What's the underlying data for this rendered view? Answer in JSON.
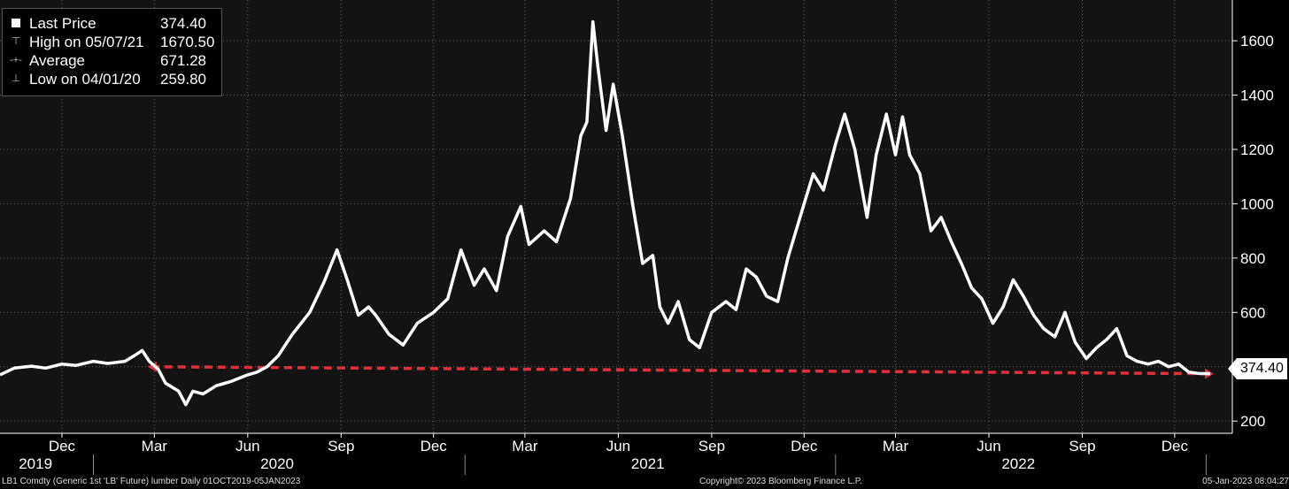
{
  "legend": {
    "last": {
      "label": "Last Price",
      "value": "374.40"
    },
    "high": {
      "label": "High on 05/07/21",
      "value": "1670.50"
    },
    "average": {
      "label": "Average",
      "value": "671.28"
    },
    "low": {
      "label": "Low on 04/01/20",
      "value": "259.80"
    }
  },
  "price_tag": "374.40",
  "footer": {
    "left": "LB1 Comdty (Generic 1st 'LB' Future) lumber  Daily 01OCT2019-05JAN2023",
    "center": "Copyright© 2023 Bloomberg Finance L.P.",
    "right": "05-Jan-2023 08:04:27"
  },
  "colors": {
    "background": "#131313",
    "line": "#ffffff",
    "grid": "#666666",
    "reference_line": "#e0303a"
  },
  "chart_data": {
    "type": "line",
    "x_range": [
      "2019-10-01",
      "2023-01-05"
    ],
    "ylim": [
      155,
      1750
    ],
    "y_ticks": [
      200,
      400,
      600,
      800,
      1000,
      1200,
      1400,
      1600
    ],
    "y_axis": "right",
    "grid": true,
    "legend_position": "top-left",
    "x_month_ticks": [
      {
        "label": "Dec",
        "date": "2019-12-01"
      },
      {
        "label": "Mar",
        "date": "2020-03-01"
      },
      {
        "label": "Jun",
        "date": "2020-06-01"
      },
      {
        "label": "Sep",
        "date": "2020-09-01"
      },
      {
        "label": "Dec",
        "date": "2020-12-01"
      },
      {
        "label": "Mar",
        "date": "2021-03-01"
      },
      {
        "label": "Jun",
        "date": "2021-06-01"
      },
      {
        "label": "Sep",
        "date": "2021-09-01"
      },
      {
        "label": "Dec",
        "date": "2021-12-01"
      },
      {
        "label": "Mar",
        "date": "2022-03-01"
      },
      {
        "label": "Jun",
        "date": "2022-06-01"
      },
      {
        "label": "Sep",
        "date": "2022-09-01"
      },
      {
        "label": "Dec",
        "date": "2022-12-01"
      }
    ],
    "year_labels": [
      {
        "label": "2019",
        "date": "2019-11-05"
      },
      {
        "label": "2020",
        "date": "2020-06-30"
      },
      {
        "label": "2021",
        "date": "2021-06-30"
      },
      {
        "label": "2022",
        "date": "2022-06-30"
      }
    ],
    "year_boundaries": [
      "2020-01-01",
      "2021-01-01",
      "2022-01-01",
      "2023-01-01"
    ],
    "series": [
      {
        "points": [
          [
            "2019-10-01",
            370
          ],
          [
            "2019-10-15",
            395
          ],
          [
            "2019-11-01",
            402
          ],
          [
            "2019-11-15",
            395
          ],
          [
            "2019-12-01",
            410
          ],
          [
            "2019-12-15",
            405
          ],
          [
            "2020-01-01",
            420
          ],
          [
            "2020-01-15",
            412
          ],
          [
            "2020-02-01",
            420
          ],
          [
            "2020-02-10",
            440
          ],
          [
            "2020-02-18",
            460
          ],
          [
            "2020-02-25",
            420
          ],
          [
            "2020-03-05",
            390
          ],
          [
            "2020-03-12",
            340
          ],
          [
            "2020-03-25",
            310
          ],
          [
            "2020-04-01",
            260
          ],
          [
            "2020-04-08",
            310
          ],
          [
            "2020-04-18",
            300
          ],
          [
            "2020-05-01",
            330
          ],
          [
            "2020-05-15",
            345
          ],
          [
            "2020-06-01",
            370
          ],
          [
            "2020-06-10",
            380
          ],
          [
            "2020-06-20",
            400
          ],
          [
            "2020-07-01",
            440
          ],
          [
            "2020-07-15",
            520
          ],
          [
            "2020-08-01",
            600
          ],
          [
            "2020-08-15",
            710
          ],
          [
            "2020-08-28",
            830
          ],
          [
            "2020-09-07",
            720
          ],
          [
            "2020-09-18",
            590
          ],
          [
            "2020-09-28",
            620
          ],
          [
            "2020-10-05",
            590
          ],
          [
            "2020-10-18",
            520
          ],
          [
            "2020-11-01",
            480
          ],
          [
            "2020-11-15",
            560
          ],
          [
            "2020-12-01",
            600
          ],
          [
            "2020-12-15",
            650
          ],
          [
            "2020-12-28",
            830
          ],
          [
            "2021-01-10",
            700
          ],
          [
            "2021-01-20",
            760
          ],
          [
            "2021-02-01",
            680
          ],
          [
            "2021-02-12",
            880
          ],
          [
            "2021-02-25",
            990
          ],
          [
            "2021-03-05",
            850
          ],
          [
            "2021-03-20",
            900
          ],
          [
            "2021-04-01",
            860
          ],
          [
            "2021-04-15",
            1020
          ],
          [
            "2021-04-25",
            1250
          ],
          [
            "2021-05-01",
            1300
          ],
          [
            "2021-05-07",
            1670
          ],
          [
            "2021-05-12",
            1500
          ],
          [
            "2021-05-20",
            1270
          ],
          [
            "2021-05-27",
            1440
          ],
          [
            "2021-06-05",
            1250
          ],
          [
            "2021-06-15",
            1000
          ],
          [
            "2021-06-25",
            780
          ],
          [
            "2021-07-05",
            810
          ],
          [
            "2021-07-12",
            620
          ],
          [
            "2021-07-20",
            560
          ],
          [
            "2021-07-30",
            640
          ],
          [
            "2021-08-10",
            500
          ],
          [
            "2021-08-20",
            470
          ],
          [
            "2021-09-01",
            600
          ],
          [
            "2021-09-15",
            640
          ],
          [
            "2021-09-25",
            610
          ],
          [
            "2021-10-05",
            760
          ],
          [
            "2021-10-15",
            730
          ],
          [
            "2021-10-25",
            660
          ],
          [
            "2021-11-05",
            640
          ],
          [
            "2021-11-15",
            800
          ],
          [
            "2021-12-01",
            1000
          ],
          [
            "2021-12-10",
            1110
          ],
          [
            "2021-12-20",
            1050
          ],
          [
            "2022-01-01",
            1220
          ],
          [
            "2022-01-10",
            1330
          ],
          [
            "2022-01-20",
            1200
          ],
          [
            "2022-02-01",
            950
          ],
          [
            "2022-02-10",
            1180
          ],
          [
            "2022-02-20",
            1330
          ],
          [
            "2022-03-01",
            1180
          ],
          [
            "2022-03-08",
            1320
          ],
          [
            "2022-03-15",
            1180
          ],
          [
            "2022-03-25",
            1110
          ],
          [
            "2022-04-05",
            900
          ],
          [
            "2022-04-15",
            950
          ],
          [
            "2022-04-25",
            860
          ],
          [
            "2022-05-05",
            780
          ],
          [
            "2022-05-15",
            690
          ],
          [
            "2022-05-25",
            650
          ],
          [
            "2022-06-05",
            560
          ],
          [
            "2022-06-15",
            620
          ],
          [
            "2022-06-25",
            720
          ],
          [
            "2022-07-05",
            660
          ],
          [
            "2022-07-15",
            590
          ],
          [
            "2022-07-25",
            540
          ],
          [
            "2022-08-05",
            510
          ],
          [
            "2022-08-15",
            600
          ],
          [
            "2022-08-25",
            490
          ],
          [
            "2022-09-05",
            430
          ],
          [
            "2022-09-15",
            470
          ],
          [
            "2022-09-25",
            500
          ],
          [
            "2022-10-05",
            540
          ],
          [
            "2022-10-15",
            440
          ],
          [
            "2022-10-25",
            420
          ],
          [
            "2022-11-05",
            410
          ],
          [
            "2022-11-15",
            420
          ],
          [
            "2022-11-25",
            400
          ],
          [
            "2022-12-05",
            410
          ],
          [
            "2022-12-15",
            380
          ],
          [
            "2022-12-25",
            375
          ],
          [
            "2023-01-05",
            374.4
          ]
        ]
      }
    ],
    "reference_line": {
      "style": "dashed",
      "from": [
        "2020-02-27",
        400
      ],
      "to": [
        "2023-01-05",
        374.4
      ]
    }
  }
}
